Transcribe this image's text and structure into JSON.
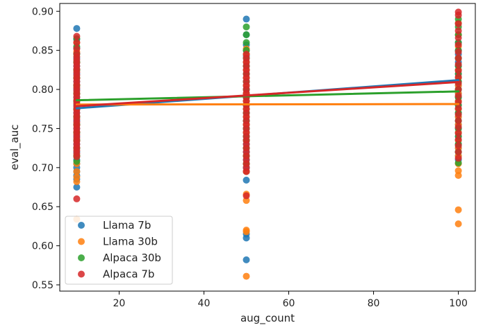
{
  "chart_data": {
    "type": "scatter",
    "xlabel": "aug_count",
    "ylabel": "eval_auc",
    "xlim": [
      6,
      104
    ],
    "ylim": [
      0.542,
      0.91
    ],
    "xticks": [
      20,
      40,
      60,
      80,
      100
    ],
    "yticks": [
      0.55,
      0.6,
      0.65,
      0.7,
      0.75,
      0.8,
      0.85,
      0.9
    ],
    "xtick_labels": [
      "20",
      "40",
      "60",
      "80",
      "100"
    ],
    "ytick_labels": [
      "0.55",
      "0.60",
      "0.65",
      "0.70",
      "0.75",
      "0.80",
      "0.85",
      "0.90"
    ],
    "grid": false,
    "legend_position": "lower-left",
    "series": [
      {
        "name": "Llama 7b",
        "color": "#1f77b4",
        "points": {
          "10": [
            0.878,
            0.864,
            0.853,
            0.846,
            0.84,
            0.835,
            0.83,
            0.825,
            0.82,
            0.815,
            0.81,
            0.805,
            0.8,
            0.795,
            0.79,
            0.785,
            0.78,
            0.775,
            0.77,
            0.765,
            0.76,
            0.755,
            0.75,
            0.745,
            0.74,
            0.735,
            0.73,
            0.725,
            0.72,
            0.715,
            0.71,
            0.705,
            0.7,
            0.695,
            0.69,
            0.685,
            0.675
          ],
          "50": [
            0.89,
            0.87,
            0.857,
            0.85,
            0.843,
            0.835,
            0.83,
            0.825,
            0.82,
            0.815,
            0.81,
            0.805,
            0.8,
            0.795,
            0.79,
            0.785,
            0.78,
            0.775,
            0.77,
            0.765,
            0.76,
            0.755,
            0.75,
            0.745,
            0.74,
            0.735,
            0.73,
            0.725,
            0.72,
            0.715,
            0.71,
            0.705,
            0.7,
            0.695,
            0.684,
            0.615,
            0.61,
            0.582
          ],
          "100": [
            0.885,
            0.87,
            0.86,
            0.85,
            0.845,
            0.84,
            0.835,
            0.83,
            0.825,
            0.82,
            0.815,
            0.81,
            0.805,
            0.8,
            0.795,
            0.79,
            0.785,
            0.78,
            0.775,
            0.77,
            0.765,
            0.76,
            0.755,
            0.75,
            0.745,
            0.74,
            0.735,
            0.73,
            0.725,
            0.72,
            0.715,
            0.71
          ]
        },
        "trend": [
          0.7759,
          0.8119
        ]
      },
      {
        "name": "Llama 30b",
        "color": "#ff7f0e",
        "points": {
          "10": [
            0.86,
            0.848,
            0.835,
            0.825,
            0.815,
            0.805,
            0.795,
            0.785,
            0.775,
            0.765,
            0.755,
            0.745,
            0.735,
            0.725,
            0.715,
            0.705,
            0.695,
            0.688,
            0.682,
            0.634
          ],
          "50": [
            0.852,
            0.845,
            0.835,
            0.825,
            0.815,
            0.805,
            0.795,
            0.785,
            0.775,
            0.765,
            0.755,
            0.745,
            0.735,
            0.725,
            0.715,
            0.705,
            0.695,
            0.666,
            0.658,
            0.62,
            0.618,
            0.561
          ],
          "100": [
            0.885,
            0.87,
            0.855,
            0.84,
            0.825,
            0.815,
            0.805,
            0.795,
            0.785,
            0.775,
            0.765,
            0.755,
            0.745,
            0.735,
            0.725,
            0.715,
            0.705,
            0.696,
            0.69,
            0.646,
            0.628
          ]
        },
        "trend": [
          0.7807,
          0.7813
        ]
      },
      {
        "name": "Alpaca 30b",
        "color": "#2ca02c",
        "points": {
          "10": [
            0.865,
            0.855,
            0.845,
            0.835,
            0.825,
            0.815,
            0.805,
            0.795,
            0.785,
            0.775,
            0.765,
            0.755,
            0.745,
            0.735,
            0.725,
            0.715,
            0.708
          ],
          "50": [
            0.88,
            0.87,
            0.86,
            0.85,
            0.84,
            0.83,
            0.82,
            0.81,
            0.8,
            0.79,
            0.78,
            0.77,
            0.76,
            0.75,
            0.74,
            0.735,
            0.725,
            0.715,
            0.705
          ],
          "100": [
            0.89,
            0.88,
            0.87,
            0.86,
            0.85,
            0.84,
            0.83,
            0.82,
            0.81,
            0.8,
            0.79,
            0.78,
            0.77,
            0.76,
            0.75,
            0.74,
            0.73,
            0.72,
            0.706
          ]
        },
        "trend": [
          0.7862,
          0.7975
        ]
      },
      {
        "name": "Alpaca 7b",
        "color": "#d62728",
        "points": {
          "10": [
            0.868,
            0.86,
            0.852,
            0.846,
            0.842,
            0.838,
            0.834,
            0.83,
            0.826,
            0.822,
            0.818,
            0.814,
            0.81,
            0.806,
            0.802,
            0.798,
            0.794,
            0.79,
            0.786,
            0.782,
            0.778,
            0.774,
            0.77,
            0.766,
            0.762,
            0.758,
            0.754,
            0.75,
            0.746,
            0.742,
            0.738,
            0.734,
            0.73,
            0.726,
            0.722,
            0.718,
            0.714,
            0.66
          ],
          "50": [
            0.845,
            0.84,
            0.835,
            0.83,
            0.825,
            0.82,
            0.815,
            0.81,
            0.805,
            0.8,
            0.795,
            0.79,
            0.785,
            0.78,
            0.775,
            0.77,
            0.765,
            0.76,
            0.755,
            0.75,
            0.745,
            0.74,
            0.735,
            0.73,
            0.725,
            0.72,
            0.715,
            0.71,
            0.705,
            0.7,
            0.695,
            0.664
          ],
          "100": [
            0.899,
            0.895,
            0.884,
            0.875,
            0.866,
            0.857,
            0.848,
            0.84,
            0.832,
            0.824,
            0.816,
            0.808,
            0.8,
            0.792,
            0.784,
            0.776,
            0.768,
            0.76,
            0.752,
            0.744,
            0.736,
            0.728,
            0.72,
            0.712
          ]
        },
        "trend": [
          0.7786,
          0.8095
        ]
      }
    ]
  }
}
